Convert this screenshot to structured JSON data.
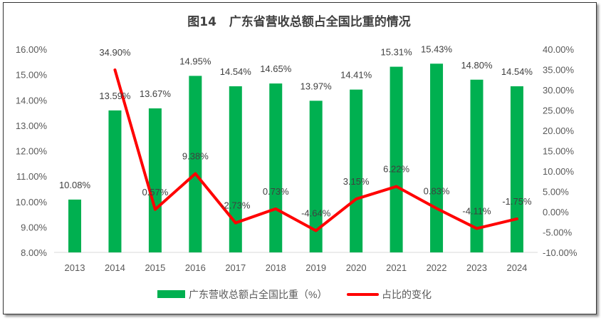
{
  "chart_data": {
    "type": "bar+line",
    "title": "图14   广东省营收总额占全国比重的情况",
    "categories": [
      "2013",
      "2014",
      "2015",
      "2016",
      "2017",
      "2018",
      "2019",
      "2020",
      "2021",
      "2022",
      "2023",
      "2024"
    ],
    "series": [
      {
        "name": "广东营收总额占全国比重（%）",
        "type": "bar",
        "axis": "left",
        "color": "#00B050",
        "values": [
          10.08,
          13.59,
          13.67,
          14.95,
          14.54,
          14.65,
          13.97,
          14.41,
          15.31,
          15.43,
          14.8,
          14.54
        ],
        "labels": [
          "10.08%",
          "13.59%",
          "13.67%",
          "14.95%",
          "14.54%",
          "14.65%",
          "13.97%",
          "14.41%",
          "15.31%",
          "15.43%",
          "14.80%",
          "14.54%"
        ]
      },
      {
        "name": "占比的变化",
        "type": "line",
        "axis": "right",
        "color": "#FF0000",
        "values": [
          null,
          34.9,
          0.57,
          9.38,
          -2.73,
          0.73,
          -4.64,
          3.15,
          6.22,
          0.83,
          -4.11,
          -1.75
        ],
        "labels": [
          null,
          "34.90%",
          "0.57%",
          "9.38%",
          "-2.73%",
          "0.73%",
          "-4.64%",
          "3.15%",
          "6.22%",
          "0.83%",
          "-4.11%",
          "-1.75%"
        ]
      }
    ],
    "left_axis": {
      "ylim": [
        8,
        16
      ],
      "ticks": [
        "8.00%",
        "9.00%",
        "10.00%",
        "11.00%",
        "12.00%",
        "13.00%",
        "14.00%",
        "15.00%",
        "16.00%"
      ]
    },
    "right_axis": {
      "ylim": [
        -10,
        40
      ],
      "ticks": [
        "-10.00%",
        "-5.00%",
        "0.00%",
        "5.00%",
        "10.00%",
        "15.00%",
        "20.00%",
        "25.00%",
        "30.00%",
        "35.00%",
        "40.00%"
      ]
    },
    "grid": false,
    "legend_placement": "bottom"
  }
}
